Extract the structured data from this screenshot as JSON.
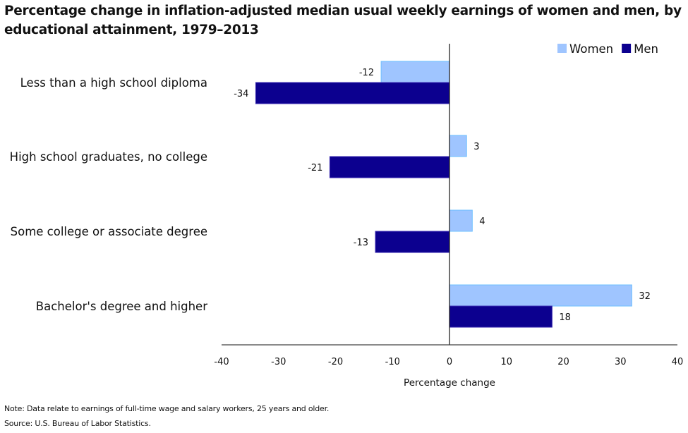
{
  "chart_data": {
    "type": "bar",
    "orientation": "horizontal",
    "title": "Percentage change in inflation-adjusted median usual weekly earnings of women and men, by educational attainment, 1979–2013",
    "categories": [
      "Less than a high school diploma",
      "High school graduates, no college",
      "Some college or associate degree",
      "Bachelor's degree and higher"
    ],
    "series": [
      {
        "name": "Women",
        "color": "#9fc5ff",
        "values": [
          -12,
          3,
          4,
          32
        ]
      },
      {
        "name": "Men",
        "color": "#0c008f",
        "values": [
          -34,
          -21,
          -13,
          18
        ]
      }
    ],
    "xlabel": "Percentage change",
    "ylabel": "",
    "xlim": [
      -40,
      40
    ],
    "xticks": [
      -40,
      -30,
      -20,
      -10,
      0,
      10,
      20,
      30,
      40
    ],
    "grid": false,
    "legend": "top-right",
    "data_labels": true
  },
  "notes": {
    "note": "Note: Data relate to earnings of full-time wage and salary workers, 25 years and older.",
    "source": "Source: U.S. Bureau of Labor Statistics."
  }
}
